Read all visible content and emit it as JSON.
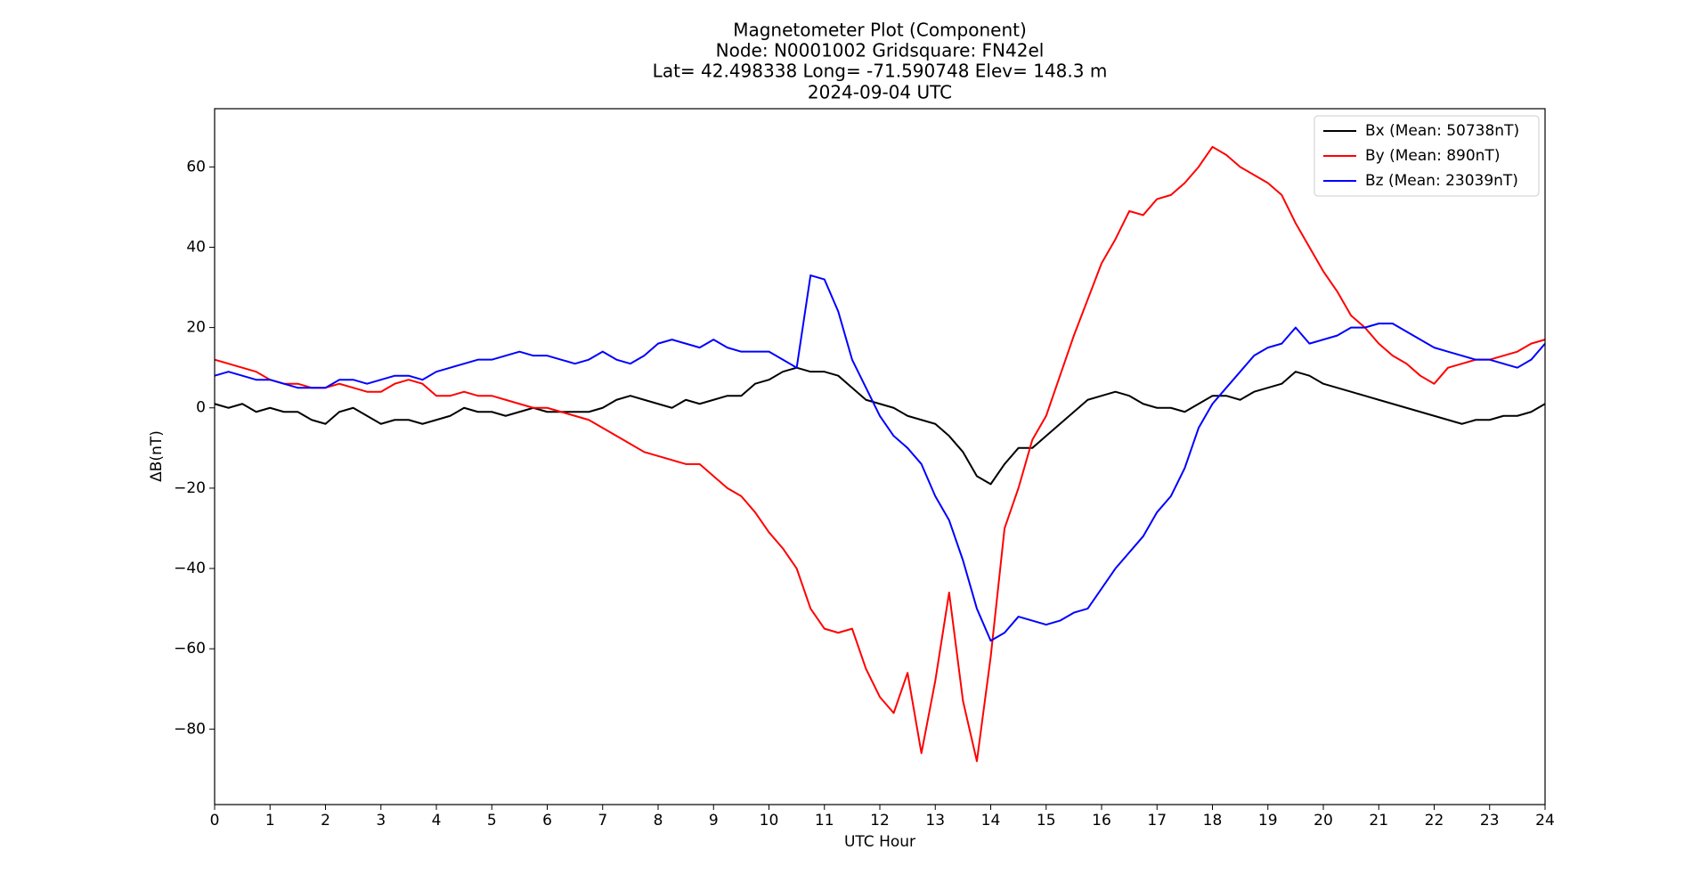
{
  "chart_data": {
    "type": "line",
    "title": "Magnetometer Plot (Component)",
    "subtitle": [
      "Node:  N0001002     Gridsquare:  FN42el",
      "Lat= 42.498338    Long= -71.590748    Elev= 148.3 m",
      "2024-09-04  UTC"
    ],
    "xlabel": "UTC Hour",
    "ylabel": "ΔB(nT)",
    "xlim": [
      0,
      24
    ],
    "xticks": [
      0,
      1,
      2,
      3,
      4,
      5,
      6,
      7,
      8,
      9,
      10,
      11,
      12,
      13,
      14,
      15,
      16,
      17,
      18,
      19,
      20,
      21,
      22,
      23,
      24
    ],
    "ylim": [
      -98.8,
      74.5
    ],
    "yticks": [
      {
        "value": -80,
        "label": "−80"
      },
      {
        "value": -60,
        "label": "−60"
      },
      {
        "value": -40,
        "label": "−40"
      },
      {
        "value": -20,
        "label": "−20"
      },
      0,
      20,
      40,
      60
    ],
    "legend": "upper right",
    "grid": false,
    "x": [
      0,
      0.25,
      0.5,
      0.75,
      1,
      1.25,
      1.5,
      1.75,
      2,
      2.25,
      2.5,
      2.75,
      3,
      3.25,
      3.5,
      3.75,
      4,
      4.25,
      4.5,
      4.75,
      5,
      5.25,
      5.5,
      5.75,
      6,
      6.25,
      6.5,
      6.75,
      7,
      7.25,
      7.5,
      7.75,
      8,
      8.25,
      8.5,
      8.75,
      9,
      9.25,
      9.5,
      9.75,
      10,
      10.25,
      10.5,
      10.75,
      11,
      11.25,
      11.5,
      11.75,
      12,
      12.25,
      12.5,
      12.75,
      13,
      13.25,
      13.5,
      13.75,
      14,
      14.25,
      14.5,
      14.75,
      15,
      15.25,
      15.5,
      15.75,
      16,
      16.25,
      16.5,
      16.75,
      17,
      17.25,
      17.5,
      17.75,
      18,
      18.25,
      18.5,
      18.75,
      19,
      19.25,
      19.5,
      19.75,
      20,
      20.25,
      20.5,
      20.75,
      21,
      21.25,
      21.5,
      21.75,
      22,
      22.25,
      22.5,
      22.75,
      23,
      23.25,
      23.5,
      23.75,
      24
    ],
    "series": [
      {
        "name": "Bx (Mean: 50738nT)",
        "color": "#000000",
        "values": [
          1,
          0,
          1,
          -1,
          0,
          -1,
          -1,
          -3,
          -4,
          -1,
          0,
          -2,
          -4,
          -3,
          -3,
          -4,
          -3,
          -2,
          0,
          -1,
          -1,
          -2,
          -1,
          0,
          -1,
          -1,
          -1,
          -1,
          0,
          2,
          3,
          2,
          1,
          0,
          2,
          1,
          2,
          3,
          3,
          6,
          7,
          9,
          10,
          9,
          9,
          8,
          5,
          2,
          1,
          0,
          -2,
          -3,
          -4,
          -7,
          -11,
          -17,
          -19,
          -14,
          -10,
          -10,
          -7,
          -4,
          -1,
          2,
          3,
          4,
          3,
          1,
          0,
          0,
          -1,
          1,
          3,
          3,
          2,
          4,
          5,
          6,
          9,
          8,
          6,
          5,
          4,
          3,
          2,
          1,
          0,
          -1,
          -2,
          -3,
          -4,
          -3,
          -3,
          -2,
          -2,
          -1,
          1
        ]
      },
      {
        "name": "By (Mean: 890nT)",
        "color": "#ff0000",
        "values": [
          12,
          11,
          10,
          9,
          7,
          6,
          6,
          5,
          5,
          6,
          5,
          4,
          4,
          6,
          7,
          6,
          3,
          3,
          4,
          3,
          3,
          2,
          1,
          0,
          0,
          -1,
          -2,
          -3,
          -5,
          -7,
          -9,
          -11,
          -12,
          -13,
          -14,
          -14,
          -17,
          -20,
          -22,
          -26,
          -31,
          -35,
          -40,
          -50,
          -55,
          -56,
          -55,
          -65,
          -72,
          -76,
          -66,
          -86,
          -68,
          -46,
          -73,
          -88,
          -62,
          -30,
          -20,
          -8,
          -2,
          8,
          18,
          27,
          36,
          42,
          49,
          48,
          52,
          53,
          56,
          60,
          65,
          63,
          60,
          58,
          56,
          53,
          46,
          40,
          34,
          29,
          23,
          20,
          16,
          13,
          11,
          8,
          6,
          10,
          11,
          12,
          12,
          13,
          14,
          16,
          17
        ]
      },
      {
        "name": "Bz (Mean: 23039nT)",
        "color": "#0000ff",
        "values": [
          8,
          9,
          8,
          7,
          7,
          6,
          5,
          5,
          5,
          7,
          7,
          6,
          7,
          8,
          8,
          7,
          9,
          10,
          11,
          12,
          12,
          13,
          14,
          13,
          13,
          12,
          11,
          12,
          14,
          12,
          11,
          13,
          16,
          17,
          16,
          15,
          17,
          15,
          14,
          14,
          14,
          12,
          10,
          33,
          32,
          24,
          12,
          5,
          -2,
          -7,
          -10,
          -14,
          -22,
          -28,
          -38,
          -50,
          -58,
          -56,
          -52,
          -53,
          -54,
          -53,
          -51,
          -50,
          -45,
          -40,
          -36,
          -32,
          -26,
          -22,
          -15,
          -5,
          1,
          5,
          9,
          13,
          15,
          16,
          20,
          16,
          17,
          18,
          20,
          20,
          21,
          21,
          19,
          17,
          15,
          14,
          13,
          12,
          12,
          11,
          10,
          12,
          16
        ]
      }
    ]
  }
}
